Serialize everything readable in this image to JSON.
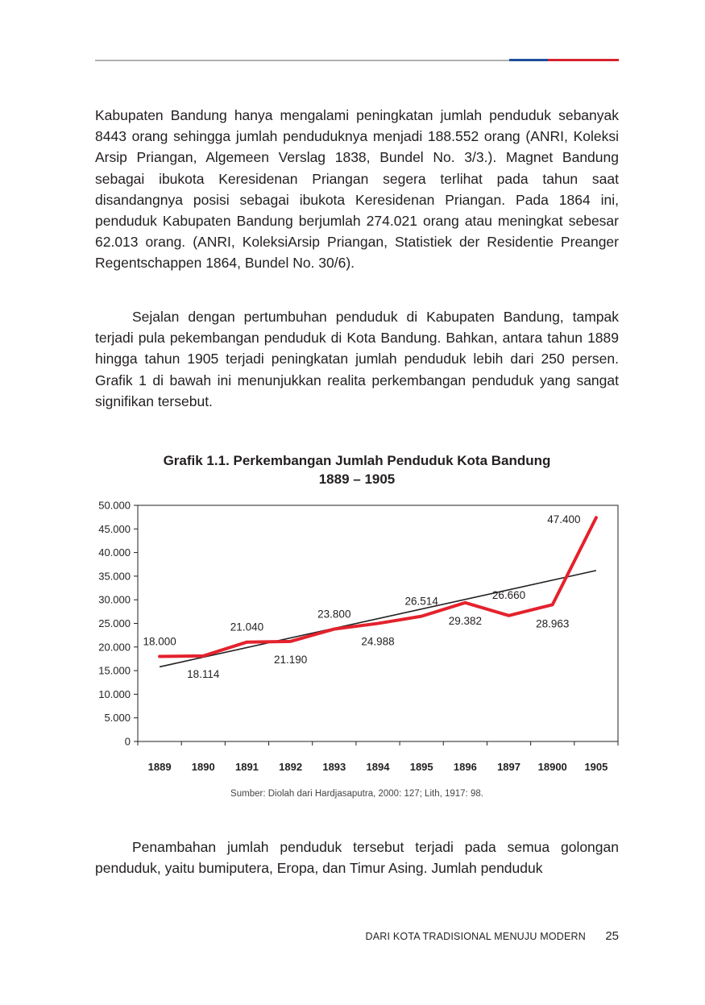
{
  "header": {
    "rule_colors": [
      "#b0b0b0",
      "#1f4e9c",
      "#d7232f"
    ]
  },
  "paragraphs": {
    "p1": "Kabupaten Bandung hanya mengalami peningkatan jumlah penduduk sebanyak 8443 orang sehingga jumlah penduduknya menjadi 188.552 orang (ANRI, Koleksi Arsip Priangan, Algemeen Verslag 1838, Bundel No. 3/3.). Magnet Bandung sebagai ibukota Keresidenan Priangan segera terlihat pada tahun saat disandangnya posisi sebagai ibukota Keresidenan Priangan. Pada 1864 ini, penduduk Kabupaten Bandung berjumlah 274.021 orang atau meningkat sebesar 62.013 orang. (ANRI, KoleksiArsip Priangan, Statistiek der Residentie Preanger Regentschappen 1864, Bundel No. 30/6).",
    "p2": "Sejalan dengan pertumbuhan penduduk di Kabupaten Bandung, tampak terjadi pula pekembangan penduduk di Kota Bandung. Bahkan, antara tahun 1889 hingga tahun 1905 terjadi peningkatan jumlah penduduk lebih dari 250 persen. Grafik 1 di bawah ini menunjukkan realita perkembangan penduduk yang sangat signifikan tersebut.",
    "p3": "Penambahan jumlah penduduk tersebut terjadi pada semua golongan penduduk, yaitu bumiputera, Eropa, dan Timur Asing. Jumlah penduduk"
  },
  "chart_data": {
    "type": "line",
    "title_line1": "Grafik 1.1. Perkembangan Jumlah Penduduk Kota Bandung",
    "title_line2": "1889 – 1905",
    "categories": [
      "1889",
      "1890",
      "1891",
      "1892",
      "1893",
      "1894",
      "1895",
      "1896",
      "1897",
      "18900",
      "1905"
    ],
    "series": [
      {
        "values": [
          18000,
          18114,
          21040,
          21190,
          23800,
          24988,
          26514,
          29382,
          26660,
          28963,
          47400
        ],
        "data_labels": [
          "18.000",
          "18.114",
          "21.040",
          "21.190",
          "23.800",
          "24.988",
          "26.514",
          "29.382",
          "26.660",
          "28.963",
          "47.400"
        ],
        "color": "#e3222d"
      }
    ],
    "trendline": {
      "start": 15800,
      "end": 36200,
      "color": "#231f20"
    },
    "ylim": [
      0,
      50000
    ],
    "yticks": [
      0,
      5000,
      10000,
      15000,
      20000,
      25000,
      30000,
      35000,
      40000,
      45000,
      50000
    ],
    "ytick_labels": [
      "0",
      "5.000",
      "10.000",
      "15.000",
      "20.000",
      "25.000",
      "30.000",
      "35.000",
      "40.000",
      "45.000",
      "50.000"
    ],
    "grid": false,
    "legend": "none",
    "source": "Sumber: Diolah dari Hardjasaputra, 2000: 127; Lith, 1917: 98."
  },
  "footer": {
    "title": "DARI KOTA TRADISIONAL MENUJU MODERN",
    "page_number": "25"
  }
}
